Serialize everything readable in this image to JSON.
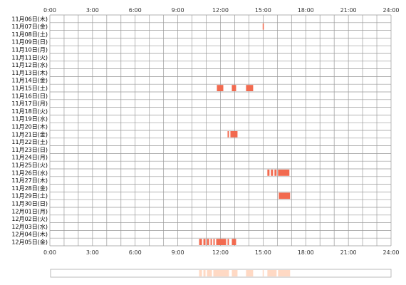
{
  "chart_data": {
    "type": "heatmap",
    "title": "",
    "x_axis": {
      "range_hours": [
        0,
        24
      ],
      "tick_labels": [
        "0:00",
        "3:00",
        "6:00",
        "9:00",
        "12:00",
        "15:00",
        "18:00",
        "21:00",
        "24:00"
      ],
      "minor_grid_hours": 1,
      "position": "top and bottom"
    },
    "days": [
      "11月06日(木)",
      "11月07日(金)",
      "11月08日(土)",
      "11月09日(日)",
      "11月10日(月)",
      "11月11日(火)",
      "11月12日(水)",
      "11月13日(木)",
      "11月14日(金)",
      "11月15日(土)",
      "11月16日(日)",
      "11月17日(月)",
      "11月18日(火)",
      "11月19日(水)",
      "11月20日(木)",
      "11月21日(金)",
      "11月22日(土)",
      "11月23日(日)",
      "11月24日(月)",
      "11月25日(火)",
      "11月26日(水)",
      "11月27日(木)",
      "11月28日(金)",
      "11月29日(土)",
      "11月30日(日)",
      "12月01日(月)",
      "12月02日(火)",
      "12月03日(水)",
      "12月04日(木)",
      "12月05日(金)"
    ],
    "activity": [
      {
        "day_index": 1,
        "spans": [
          [
            14.97,
            15.05
          ]
        ]
      },
      {
        "day_index": 9,
        "spans": [
          [
            11.75,
            12.2
          ],
          [
            12.8,
            13.1
          ],
          [
            13.8,
            14.3
          ]
        ]
      },
      {
        "day_index": 15,
        "spans": [
          [
            12.5,
            12.6
          ],
          [
            12.7,
            13.2
          ]
        ]
      },
      {
        "day_index": 20,
        "spans": [
          [
            15.3,
            15.45
          ],
          [
            15.55,
            15.7
          ],
          [
            15.8,
            15.95
          ],
          [
            16.05,
            16.85
          ]
        ]
      },
      {
        "day_index": 23,
        "spans": [
          [
            16.1,
            16.9
          ]
        ]
      },
      {
        "day_index": 29,
        "spans": [
          [
            10.5,
            10.7
          ],
          [
            10.8,
            10.95
          ],
          [
            11.05,
            11.2
          ],
          [
            11.3,
            11.4
          ],
          [
            11.5,
            11.6
          ],
          [
            11.7,
            12.4
          ],
          [
            12.5,
            12.6
          ],
          [
            12.8,
            13.1
          ]
        ]
      }
    ],
    "summary_bar": {
      "spans": [
        [
          10.5,
          10.7
        ],
        [
          10.8,
          10.95
        ],
        [
          11.05,
          11.4
        ],
        [
          11.5,
          12.6
        ],
        [
          12.8,
          13.2
        ],
        [
          13.8,
          14.3
        ],
        [
          14.97,
          15.05
        ],
        [
          15.3,
          15.95
        ],
        [
          16.05,
          16.9
        ]
      ]
    },
    "colors": {
      "activity": "#f26a4f",
      "activity_light": "#ffd9c4",
      "grid": "#999999",
      "axis_text": "#333333"
    }
  }
}
